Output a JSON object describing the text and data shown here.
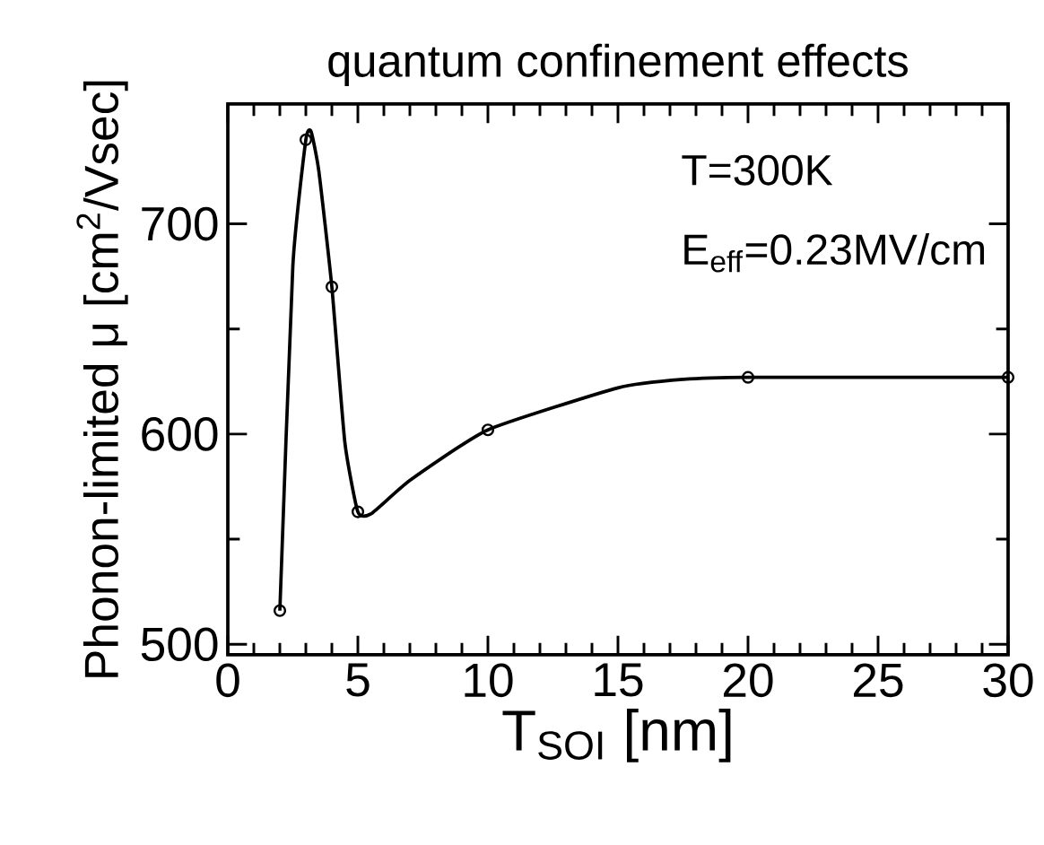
{
  "chart_data": {
    "type": "line",
    "title": "quantum confinement effects",
    "xlabel": "T$_{SOI}$ [nm]",
    "ylabel": "Phonon-limited μ [cm$^{2}$/Vsec]",
    "annotations": [
      "T=300K",
      "E$_{eff}$=0.23MV/cm"
    ],
    "series": [
      {
        "color": "#000000",
        "marker": "none",
        "x": [
          2,
          2.5,
          3,
          3.2,
          3.5,
          4,
          4.5,
          5,
          5.5,
          7,
          10,
          15,
          17.5,
          20,
          30
        ],
        "values": [
          516,
          680,
          740,
          744,
          725,
          670,
          596,
          563,
          562,
          578,
          602,
          622,
          626,
          627,
          627
        ]
      },
      {
        "type": "scatter",
        "color": "#000000",
        "marker": "circle",
        "x": [
          2,
          3,
          4,
          5,
          10,
          20,
          30
        ],
        "values": [
          516,
          740,
          670,
          563,
          602,
          627,
          627
        ]
      }
    ],
    "xlim": [
      0,
      30
    ],
    "xticks": [
      0,
      5,
      10,
      15,
      20,
      25,
      30
    ],
    "ylim": [
      495,
      757
    ],
    "yticks": [
      500,
      600,
      700
    ]
  }
}
